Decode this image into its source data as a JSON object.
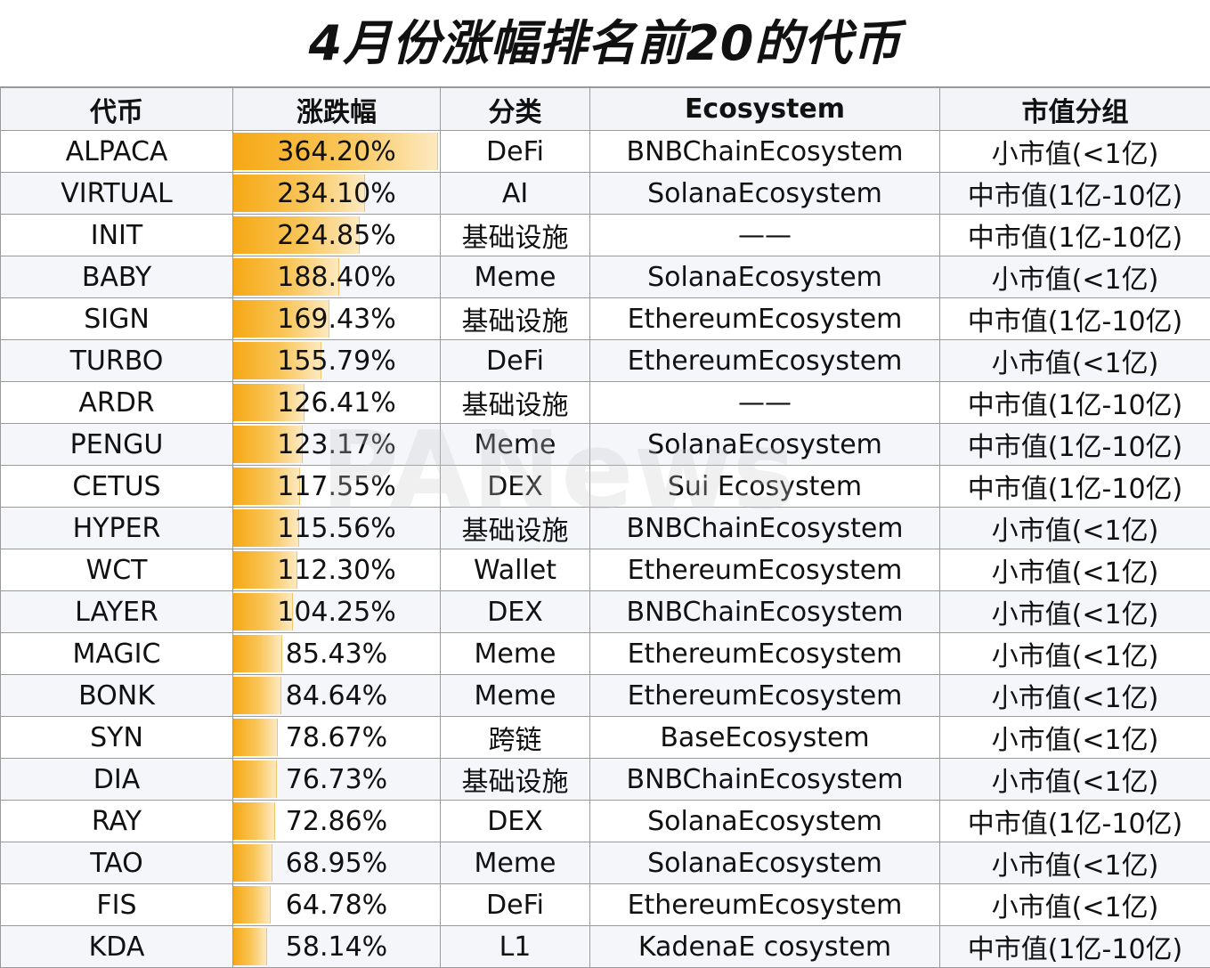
{
  "title": "4月份涨幅排名前20的代币",
  "headers": [
    "代币",
    "涨跌幅",
    "分类",
    "Ecosystem",
    "市值分组"
  ],
  "colors": {
    "bar_start": "#f6a814",
    "bar_end": "#fde9c0",
    "border": "#9a9a9a"
  },
  "watermark": "PANews",
  "rows": [
    {
      "token": "ALPACA",
      "change": "364.20%",
      "pct": 364.2,
      "category": "DeFi",
      "ecosystem": "BNBChainEcosystem",
      "cap": "小市值(<1亿)"
    },
    {
      "token": "VIRTUAL",
      "change": "234.10%",
      "pct": 234.1,
      "category": "AI",
      "ecosystem": "SolanaEcosystem",
      "cap": "中市值(1亿-10亿)"
    },
    {
      "token": "INIT",
      "change": "224.85%",
      "pct": 224.85,
      "category": "基础设施",
      "ecosystem": "——",
      "cap": "中市值(1亿-10亿)"
    },
    {
      "token": "BABY",
      "change": "188.40%",
      "pct": 188.4,
      "category": "Meme",
      "ecosystem": "SolanaEcosystem",
      "cap": "小市值(<1亿)"
    },
    {
      "token": "SIGN",
      "change": "169.43%",
      "pct": 169.43,
      "category": "基础设施",
      "ecosystem": "EthereumEcosystem",
      "cap": "中市值(1亿-10亿)"
    },
    {
      "token": "TURBO",
      "change": "155.79%",
      "pct": 155.79,
      "category": "DeFi",
      "ecosystem": "EthereumEcosystem",
      "cap": "小市值(<1亿)"
    },
    {
      "token": "ARDR",
      "change": "126.41%",
      "pct": 126.41,
      "category": "基础设施",
      "ecosystem": "——",
      "cap": "中市值(1亿-10亿)"
    },
    {
      "token": "PENGU",
      "change": "123.17%",
      "pct": 123.17,
      "category": "Meme",
      "ecosystem": "SolanaEcosystem",
      "cap": "中市值(1亿-10亿)"
    },
    {
      "token": "CETUS",
      "change": "117.55%",
      "pct": 117.55,
      "category": "DEX",
      "ecosystem": "Sui Ecosystem",
      "cap": "中市值(1亿-10亿)"
    },
    {
      "token": "HYPER",
      "change": "115.56%",
      "pct": 115.56,
      "category": "基础设施",
      "ecosystem": "BNBChainEcosystem",
      "cap": "小市值(<1亿)"
    },
    {
      "token": "WCT",
      "change": "112.30%",
      "pct": 112.3,
      "category": "Wallet",
      "ecosystem": "EthereumEcosystem",
      "cap": "小市值(<1亿)"
    },
    {
      "token": "LAYER",
      "change": "104.25%",
      "pct": 104.25,
      "category": "DEX",
      "ecosystem": "BNBChainEcosystem",
      "cap": "小市值(<1亿)"
    },
    {
      "token": "MAGIC",
      "change": "85.43%",
      "pct": 85.43,
      "category": "Meme",
      "ecosystem": "EthereumEcosystem",
      "cap": "小市值(<1亿)"
    },
    {
      "token": "BONK",
      "change": "84.64%",
      "pct": 84.64,
      "category": "Meme",
      "ecosystem": "EthereumEcosystem",
      "cap": "小市值(<1亿)"
    },
    {
      "token": "SYN",
      "change": "78.67%",
      "pct": 78.67,
      "category": "跨链",
      "ecosystem": "BaseEcosystem",
      "cap": "小市值(<1亿)"
    },
    {
      "token": "DIA",
      "change": "76.73%",
      "pct": 76.73,
      "category": "基础设施",
      "ecosystem": "BNBChainEcosystem",
      "cap": "小市值(<1亿)"
    },
    {
      "token": "RAY",
      "change": "72.86%",
      "pct": 72.86,
      "category": "DEX",
      "ecosystem": "SolanaEcosystem",
      "cap": "中市值(1亿-10亿)"
    },
    {
      "token": "TAO",
      "change": "68.95%",
      "pct": 68.95,
      "category": "Meme",
      "ecosystem": "SolanaEcosystem",
      "cap": "小市值(<1亿)"
    },
    {
      "token": "FIS",
      "change": "64.78%",
      "pct": 64.78,
      "category": "DeFi",
      "ecosystem": "EthereumEcosystem",
      "cap": "小市值(<1亿)"
    },
    {
      "token": "KDA",
      "change": "58.14%",
      "pct": 58.14,
      "category": "L1",
      "ecosystem": "KadenaE cosystem",
      "cap": "中市值(1亿-10亿)"
    }
  ]
}
